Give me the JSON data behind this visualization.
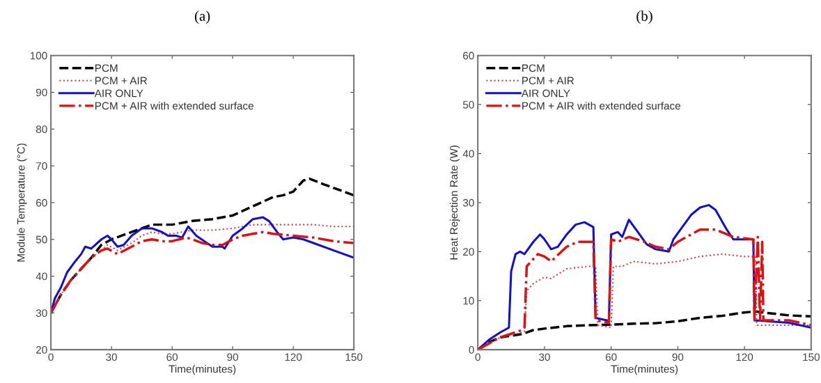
{
  "chart_data": [
    {
      "type": "line",
      "title": "(a)",
      "xlabel": "Time(minutes)",
      "ylabel": "Module Temperature (°C)",
      "xlim": [
        0,
        150
      ],
      "ylim": [
        20,
        100
      ],
      "xticks": [
        0,
        30,
        60,
        90,
        120,
        150
      ],
      "yticks": [
        20,
        30,
        40,
        50,
        60,
        70,
        80,
        90,
        100
      ],
      "grid": false,
      "legend": "top left",
      "series": [
        {
          "name": "PCM",
          "color": "#000000",
          "line_style": "dashed",
          "x": [
            0,
            5,
            10,
            15,
            20,
            25,
            30,
            35,
            40,
            45,
            50,
            55,
            60,
            65,
            70,
            80,
            90,
            100,
            110,
            115,
            120,
            125,
            128,
            135,
            145,
            150
          ],
          "values": [
            30,
            35,
            39,
            42,
            45,
            48.5,
            50,
            51,
            52,
            53,
            54,
            54,
            54,
            54.5,
            55,
            55.5,
            56.5,
            59,
            61.5,
            62,
            63,
            66,
            66.5,
            65,
            63,
            62
          ]
        },
        {
          "name": "PCM + AIR",
          "color": "#d04040",
          "line_style": "dotted",
          "x": [
            0,
            5,
            10,
            15,
            20,
            25,
            28,
            33,
            40,
            45,
            50,
            55,
            60,
            70,
            80,
            90,
            100,
            110,
            120,
            130,
            140,
            150
          ],
          "values": [
            30,
            35,
            39,
            42,
            45,
            47,
            48.5,
            47,
            49,
            51,
            52,
            51.5,
            51.5,
            52.5,
            52.5,
            53,
            54,
            54,
            54,
            54,
            53.5,
            53.5
          ]
        },
        {
          "name": "AIR ONLY",
          "color": "#1010d0",
          "line_style": "solid",
          "x": [
            0,
            2,
            5,
            8,
            12,
            15,
            17,
            20,
            25,
            28,
            30,
            33,
            36,
            40,
            45,
            50,
            55,
            58,
            62,
            65,
            68,
            72,
            76,
            80,
            85,
            86,
            90,
            95,
            100,
            105,
            108,
            112,
            115,
            120,
            125,
            130,
            140,
            150
          ],
          "values": [
            30,
            34,
            37,
            41,
            44,
            46,
            48,
            47.5,
            50,
            51,
            50,
            48,
            48.5,
            51,
            53,
            53,
            52,
            51,
            51,
            50.5,
            53.5,
            51,
            49.5,
            48,
            48,
            47.5,
            51,
            53,
            55.5,
            56,
            55,
            52,
            50,
            50.5,
            50,
            49,
            47,
            45
          ]
        },
        {
          "name": "PCM + AIR with extended surface",
          "color": "#e01010",
          "line_style": "dashdot",
          "x": [
            0,
            5,
            10,
            15,
            20,
            25,
            28,
            33,
            40,
            45,
            50,
            55,
            60,
            67,
            70,
            75,
            80,
            85,
            90,
            95,
            100,
            105,
            110,
            120,
            130,
            140,
            150
          ],
          "values": [
            30,
            35,
            39,
            42,
            45,
            47,
            47.5,
            46,
            48,
            49.5,
            50,
            49.5,
            49.5,
            50.5,
            50,
            49,
            48.5,
            48.5,
            50,
            51,
            51.5,
            52,
            51.5,
            51,
            50.5,
            49.5,
            49
          ]
        }
      ]
    },
    {
      "type": "line",
      "title": "(b)",
      "xlabel": "Time(minutes)",
      "ylabel": "Heat Rejection Rate (W)",
      "xlim": [
        0,
        150
      ],
      "ylim": [
        0,
        60
      ],
      "xticks": [
        0,
        30,
        60,
        90,
        120,
        150
      ],
      "yticks": [
        0,
        10,
        20,
        30,
        40,
        50,
        60
      ],
      "grid": false,
      "legend": "top left",
      "series": [
        {
          "name": "PCM",
          "color": "#000000",
          "line_style": "dashed",
          "x": [
            0,
            5,
            10,
            20,
            25,
            30,
            40,
            50,
            60,
            70,
            80,
            90,
            100,
            110,
            120,
            125,
            130,
            140,
            150
          ],
          "values": [
            0,
            1.5,
            2.5,
            3.2,
            4,
            4.3,
            4.8,
            5,
            5.1,
            5.3,
            5.4,
            5.8,
            6.5,
            6.9,
            7.6,
            7.8,
            7.5,
            7,
            6.8
          ]
        },
        {
          "name": "PCM + AIR",
          "color": "#d04040",
          "line_style": "dotted",
          "x": [
            0,
            10,
            20,
            21,
            22,
            25,
            30,
            33,
            40,
            50,
            53,
            54,
            60,
            61,
            65,
            70,
            80,
            90,
            100,
            110,
            120,
            125,
            125.5,
            130,
            140,
            150
          ],
          "values": [
            0,
            2.5,
            3.5,
            3.8,
            12,
            13.5,
            14.8,
            14.5,
            16.5,
            17,
            17,
            5,
            4.5,
            17,
            17,
            18,
            17.5,
            18,
            19,
            19.5,
            19,
            19,
            5,
            5,
            5,
            5
          ]
        },
        {
          "name": "AIR ONLY",
          "color": "#1010d0",
          "line_style": "solid",
          "x": [
            0,
            5,
            10,
            14,
            15,
            17,
            19,
            21,
            25,
            28,
            30,
            33,
            36,
            40,
            44,
            48,
            50,
            52,
            53,
            58,
            59,
            60,
            63,
            65,
            68,
            72,
            76,
            80,
            86,
            88,
            92,
            96,
            100,
            104,
            107,
            112,
            115,
            124,
            124.5,
            140,
            150
          ],
          "values": [
            0,
            2,
            3.5,
            4.5,
            16,
            19.5,
            20,
            19.5,
            22,
            23.5,
            22.5,
            20.5,
            21,
            23.5,
            25.5,
            26,
            25.5,
            25,
            6.5,
            6,
            6,
            23.5,
            24,
            23,
            26.5,
            24,
            21.5,
            20.5,
            20,
            22.5,
            25,
            27.5,
            29,
            29.5,
            28.5,
            24.5,
            22.5,
            22.5,
            6,
            5.5,
            4.5
          ]
        },
        {
          "name": "PCM + AIR with extended surface",
          "color": "#e01010",
          "line_style": "dashdot",
          "x": [
            0,
            10,
            20,
            21,
            22,
            27,
            30,
            33,
            40,
            45,
            52,
            53,
            59,
            60,
            63,
            68,
            75,
            80,
            86,
            90,
            100,
            107,
            115,
            124,
            124.5,
            126,
            127,
            128,
            128.5,
            140,
            150
          ],
          "values": [
            0,
            2.5,
            4,
            4.5,
            17,
            19.5,
            19,
            18,
            21,
            22,
            22,
            6,
            5.5,
            22.5,
            22,
            23,
            22,
            21,
            20.5,
            22,
            24.5,
            24.5,
            23,
            22.5,
            6,
            23,
            6,
            22,
            6,
            6,
            5
          ]
        }
      ]
    }
  ]
}
